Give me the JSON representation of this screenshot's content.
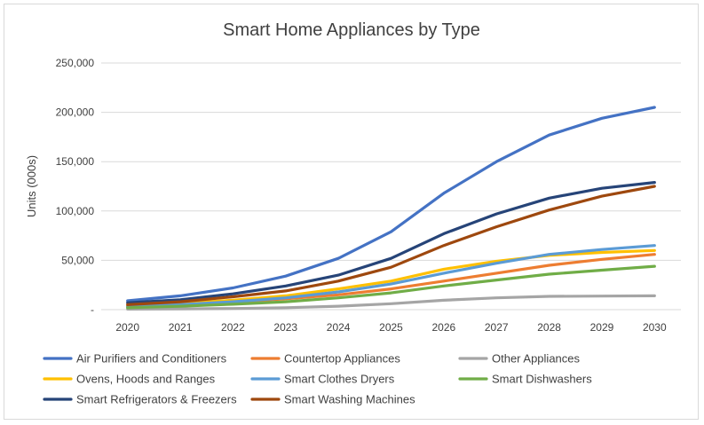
{
  "chart_data": {
    "type": "line",
    "title": "Smart Home Appliances by Type",
    "xlabel": "",
    "ylabel": "Units (000s)",
    "ylim": [
      0,
      250000
    ],
    "yticks": [
      "-",
      "50,000",
      "100,000",
      "150,000",
      "200,000",
      "250,000"
    ],
    "gridlines": true,
    "legend_position": "bottom",
    "categories": [
      "2020",
      "2021",
      "2022",
      "2023",
      "2024",
      "2025",
      "2026",
      "2027",
      "2028",
      "2029",
      "2030"
    ],
    "series": [
      {
        "name": "Air Purifiers and Conditioners",
        "color": "#4472c4",
        "values": [
          9000,
          14000,
          22000,
          34000,
          52000,
          79000,
          118000,
          150000,
          177000,
          194000,
          205000
        ]
      },
      {
        "name": "Countertop Appliances",
        "color": "#ed7d31",
        "values": [
          3000,
          5000,
          7500,
          11000,
          15000,
          21000,
          29000,
          37000,
          45000,
          51000,
          56000
        ]
      },
      {
        "name": "Other Appliances",
        "color": "#a5a5a5",
        "values": [
          500,
          800,
          1200,
          2000,
          3500,
          6000,
          9500,
          12000,
          13500,
          13800,
          14000
        ]
      },
      {
        "name": "Ovens, Hoods and Ranges",
        "color": "#ffc000",
        "values": [
          4000,
          6500,
          9500,
          14000,
          21000,
          29000,
          41000,
          49000,
          55000,
          58000,
          60000
        ]
      },
      {
        "name": "Smart Clothes Dryers",
        "color": "#5b9bd5",
        "values": [
          3000,
          5000,
          8000,
          12000,
          18000,
          26000,
          37000,
          47000,
          56000,
          61000,
          65000
        ]
      },
      {
        "name": "Smart Dishwashers",
        "color": "#70ad47",
        "values": [
          2000,
          3500,
          5500,
          8000,
          12000,
          17000,
          24000,
          30000,
          36000,
          40000,
          44000
        ]
      },
      {
        "name": "Smart Refrigerators & Freezers",
        "color": "#264478",
        "values": [
          7000,
          10000,
          16000,
          24000,
          35000,
          52000,
          77000,
          97000,
          113000,
          123000,
          129000
        ]
      },
      {
        "name": "Smart Washing Machines",
        "color": "#9e480e",
        "values": [
          5000,
          8000,
          13000,
          19000,
          29000,
          43000,
          65000,
          84000,
          101000,
          115000,
          125000
        ]
      }
    ]
  }
}
